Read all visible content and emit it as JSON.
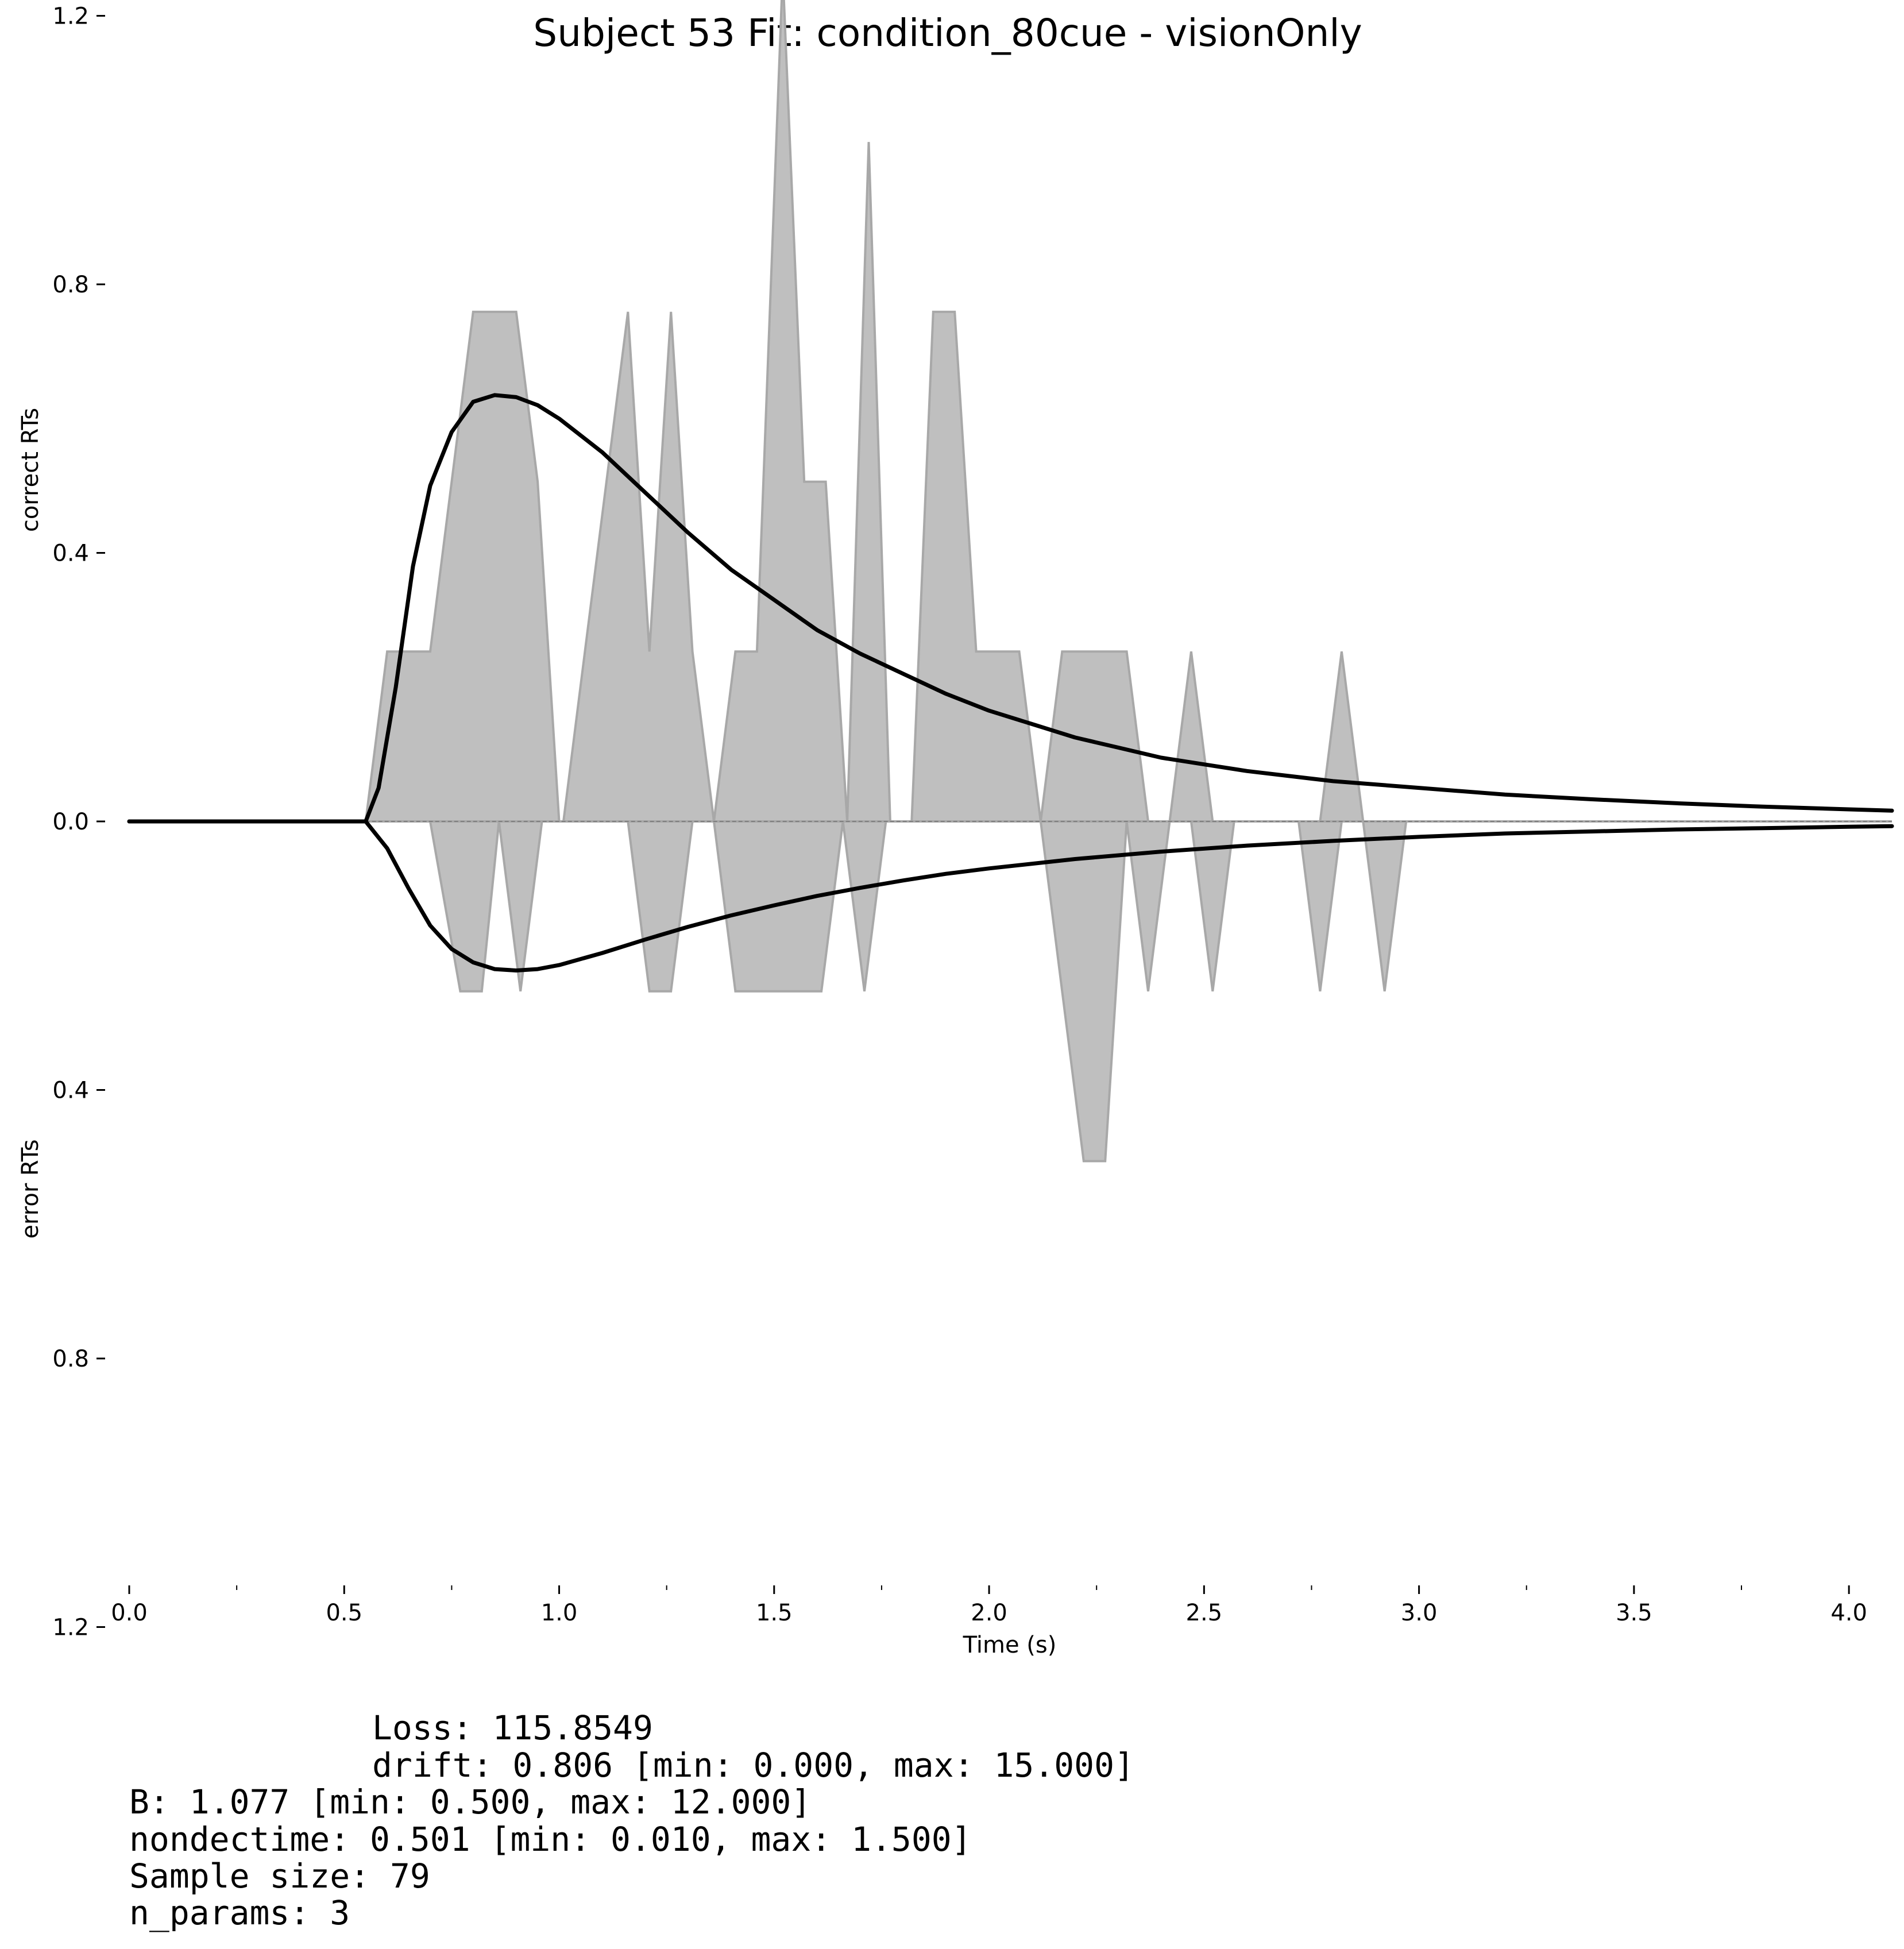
{
  "chart_data": {
    "type": "area",
    "title": "Subject 53 Fit: condition_80cue - visionOnly",
    "xlabel": "Time (s)",
    "ylabel_correct": "correct RTs",
    "ylabel_error": "error RTs",
    "xlim": [
      0.0,
      4.1
    ],
    "ylim": [
      -1.35,
      1.3
    ],
    "x_ticks": [
      "0.0",
      "0.5",
      "1.0",
      "1.5",
      "2.0",
      "2.5",
      "3.0",
      "3.5",
      "4.0"
    ],
    "x_tick_values": [
      0.0,
      0.5,
      1.0,
      1.5,
      2.0,
      2.5,
      3.0,
      3.5,
      4.0
    ],
    "x_minor_tick_values": [
      0.25,
      0.75,
      1.25,
      1.75,
      2.25,
      2.75,
      3.25,
      3.75
    ],
    "y_ticks": [
      {
        "value": 1.2,
        "label": "1.2"
      },
      {
        "value": 0.8,
        "label": "0.8"
      },
      {
        "value": 0.4,
        "label": "0.4"
      },
      {
        "value": 0.0,
        "label": "0.0"
      },
      {
        "value": -0.4,
        "label": "0.4"
      },
      {
        "value": -0.8,
        "label": "0.8"
      },
      {
        "value": -1.2,
        "label": "1.2"
      }
    ],
    "grid": false,
    "colors": {
      "histogram": "#bfbfbf",
      "histogram_edge": "#a8a8a8",
      "model": "#000000",
      "zero_line": "#808080"
    },
    "correct_histogram": {
      "x": [
        0.0,
        0.55,
        0.6,
        0.65,
        0.7,
        0.75,
        0.8,
        0.85,
        0.9,
        0.95,
        1.0,
        1.01,
        1.06,
        1.11,
        1.16,
        1.21,
        1.26,
        1.31,
        1.36,
        1.41,
        1.46,
        1.52,
        1.57,
        1.62,
        1.67,
        1.72,
        1.77,
        1.82,
        1.87,
        1.92,
        1.97,
        2.02,
        2.07,
        2.12,
        2.17,
        2.22,
        2.27,
        2.32,
        2.37,
        2.42,
        2.47,
        2.52,
        2.57,
        2.62,
        2.72,
        2.77,
        2.82,
        2.87,
        2.92,
        4.1
      ],
      "y": [
        0.0,
        0.0,
        0.253,
        0.253,
        0.253,
        0.506,
        0.759,
        0.759,
        0.759,
        0.506,
        0.0,
        0.0,
        0.253,
        0.506,
        0.759,
        0.253,
        0.759,
        0.253,
        0.0,
        0.253,
        0.253,
        1.265,
        0.506,
        0.506,
        0.0,
        1.012,
        0.0,
        0.0,
        0.759,
        0.759,
        0.253,
        0.253,
        0.253,
        0.0,
        0.253,
        0.253,
        0.253,
        0.253,
        0.0,
        0.0,
        0.253,
        0.0,
        0.0,
        0.0,
        0.0,
        0.0,
        0.253,
        0.0,
        0.0,
        0.0
      ]
    },
    "error_histogram": {
      "x": [
        0.0,
        0.7,
        0.77,
        0.82,
        0.86,
        0.91,
        0.96,
        0.98,
        1.16,
        1.21,
        1.26,
        1.31,
        1.36,
        1.41,
        1.46,
        1.51,
        1.56,
        1.61,
        1.66,
        1.71,
        1.76,
        2.12,
        2.17,
        2.22,
        2.27,
        2.32,
        2.37,
        2.42,
        2.47,
        2.52,
        2.57,
        2.72,
        2.77,
        2.82,
        2.87,
        2.92,
        2.97,
        4.1
      ],
      "y": [
        0.0,
        0.0,
        -0.253,
        -0.253,
        0.0,
        -0.253,
        0.0,
        0.0,
        0.0,
        -0.253,
        -0.253,
        0.0,
        0.0,
        -0.253,
        -0.253,
        -0.253,
        -0.253,
        -0.253,
        0.0,
        -0.253,
        0.0,
        0.0,
        -0.253,
        -0.506,
        -0.506,
        0.0,
        -0.253,
        0.0,
        0.0,
        -0.253,
        0.0,
        0.0,
        -0.253,
        0.0,
        0.0,
        -0.253,
        0.0,
        0.0
      ]
    },
    "series": [
      {
        "x": [
          0.0,
          0.55,
          0.58,
          0.62,
          0.66,
          0.7,
          0.75,
          0.8,
          0.85,
          0.9,
          0.95,
          1.0,
          1.1,
          1.2,
          1.3,
          1.4,
          1.5,
          1.6,
          1.7,
          1.8,
          1.9,
          2.0,
          2.1,
          2.2,
          2.3,
          2.4,
          2.5,
          2.6,
          2.8,
          3.0,
          3.2,
          3.4,
          3.6,
          3.8,
          4.0,
          4.1
        ],
        "y": [
          0.0,
          0.0,
          0.05,
          0.2,
          0.38,
          0.5,
          0.58,
          0.625,
          0.635,
          0.632,
          0.62,
          0.6,
          0.55,
          0.49,
          0.43,
          0.375,
          0.33,
          0.285,
          0.25,
          0.22,
          0.19,
          0.165,
          0.145,
          0.125,
          0.11,
          0.095,
          0.085,
          0.075,
          0.06,
          0.05,
          0.04,
          0.033,
          0.027,
          0.022,
          0.018,
          0.016
        ]
      },
      {
        "x": [
          0.0,
          0.55,
          0.6,
          0.65,
          0.7,
          0.75,
          0.8,
          0.85,
          0.9,
          0.95,
          1.0,
          1.1,
          1.2,
          1.3,
          1.4,
          1.5,
          1.6,
          1.7,
          1.8,
          1.9,
          2.0,
          2.2,
          2.4,
          2.6,
          2.8,
          3.0,
          3.2,
          3.4,
          3.6,
          3.8,
          4.0,
          4.1
        ],
        "y": [
          0.0,
          0.0,
          -0.04,
          -0.1,
          -0.155,
          -0.19,
          -0.21,
          -0.22,
          -0.222,
          -0.22,
          -0.214,
          -0.196,
          -0.176,
          -0.157,
          -0.14,
          -0.125,
          -0.111,
          -0.099,
          -0.088,
          -0.078,
          -0.07,
          -0.056,
          -0.045,
          -0.036,
          -0.029,
          -0.023,
          -0.018,
          -0.015,
          -0.012,
          -0.01,
          -0.008,
          -0.007
        ]
      }
    ]
  },
  "stats": {
    "lines": [
      "Loss: 115.8549",
      "drift: 0.806 [min: 0.000, max: 15.000]",
      "B: 1.077 [min: 0.500, max: 12.000]",
      "nondectime: 0.501 [min: 0.010, max: 1.500]",
      "Sample size: 79",
      "n_params: 3"
    ]
  }
}
